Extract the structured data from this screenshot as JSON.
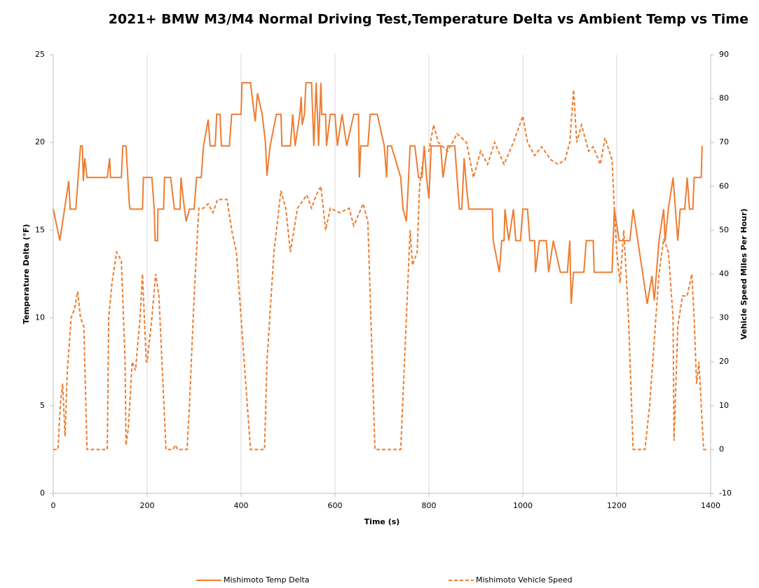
{
  "chart_data": {
    "type": "line",
    "title": "2021+ BMW M3/M4 Normal Driving Test,Temperature Delta vs Ambient Temp vs Time",
    "x_label": "Time (s)",
    "y_label": "Temperature Delta (°F)",
    "y2_label": "Vehicle Speed Miles Per Hour)",
    "xlim": [
      0,
      1400
    ],
    "xticks": [
      0,
      200,
      400,
      600,
      800,
      1000,
      1200,
      1400
    ],
    "ylim": [
      0,
      25
    ],
    "yticks": [
      0,
      5,
      10,
      15,
      20,
      25
    ],
    "y2lim": [
      -10,
      90
    ],
    "y2ticks": [
      -10,
      0,
      10,
      20,
      30,
      40,
      50,
      60,
      70,
      80,
      90
    ],
    "grid": "x",
    "legend": "bottom",
    "series": [
      {
        "name": "Mishimoto Temp Delta",
        "color": "#ed7d31",
        "dash": false,
        "x": [
          0,
          14,
          33,
          36,
          48,
          58,
          62,
          64,
          67,
          72,
          115,
          120,
          122,
          145,
          148,
          155,
          162,
          164,
          190,
          192,
          210,
          215,
          217,
          222,
          223,
          235,
          237,
          250,
          258,
          270,
          272,
          278,
          283,
          290,
          300,
          305,
          315,
          320,
          330,
          334,
          345,
          348,
          355,
          358,
          375,
          380,
          400,
          402,
          420,
          430,
          435,
          445,
          452,
          455,
          462,
          475,
          485,
          487,
          505,
          510,
          515,
          525,
          528,
          530,
          535,
          538,
          550,
          555,
          560,
          565,
          570,
          572,
          580,
          582,
          590,
          600,
          605,
          615,
          625,
          640,
          650,
          652,
          655,
          670,
          675,
          690,
          705,
          710,
          712,
          720,
          740,
          745,
          752,
          755,
          760,
          770,
          778,
          785,
          790,
          795,
          800,
          805,
          825,
          830,
          840,
          855,
          860,
          865,
          870,
          875,
          880,
          885,
          900,
          935,
          937,
          950,
          955,
          960,
          962,
          970,
          980,
          985,
          995,
          1000,
          1010,
          1015,
          1025,
          1027,
          1035,
          1050,
          1055,
          1065,
          1080,
          1095,
          1100,
          1103,
          1108,
          1130,
          1135,
          1150,
          1152,
          1190,
          1195,
          1205,
          1228,
          1235,
          1265,
          1275,
          1280,
          1290,
          1300,
          1303,
          1310,
          1320,
          1330,
          1335,
          1345,
          1350,
          1355,
          1362,
          1365,
          1380,
          1382
        ],
        "values": [
          16.2,
          14.4,
          17.8,
          16.2,
          16.2,
          19.8,
          19.8,
          17.8,
          19.1,
          18.0,
          18.0,
          19.1,
          18.0,
          18.0,
          19.8,
          19.8,
          16.5,
          16.2,
          16.2,
          18.0,
          18.0,
          16.2,
          14.4,
          14.4,
          16.2,
          16.2,
          18.0,
          18.0,
          16.2,
          16.2,
          18.0,
          16.5,
          15.5,
          16.2,
          16.2,
          18.0,
          18.0,
          19.8,
          21.3,
          19.8,
          19.8,
          21.6,
          21.6,
          19.8,
          19.8,
          21.6,
          21.6,
          23.4,
          23.4,
          21.2,
          22.8,
          21.6,
          20.0,
          18.1,
          19.8,
          21.6,
          21.6,
          19.8,
          19.8,
          21.6,
          19.8,
          21.6,
          22.6,
          21.0,
          21.6,
          23.4,
          23.4,
          19.8,
          23.4,
          19.8,
          23.4,
          21.6,
          21.6,
          19.8,
          21.6,
          21.6,
          19.8,
          21.6,
          19.8,
          21.6,
          21.6,
          18.0,
          19.8,
          19.8,
          21.6,
          21.6,
          19.8,
          18.0,
          19.8,
          19.8,
          18.0,
          16.2,
          15.5,
          17.0,
          19.8,
          19.8,
          18.0,
          18.0,
          19.8,
          18.0,
          16.8,
          19.8,
          19.8,
          18.0,
          19.8,
          19.8,
          18.0,
          16.2,
          16.2,
          19.1,
          17.5,
          16.2,
          16.2,
          16.2,
          14.4,
          12.6,
          14.4,
          14.4,
          16.2,
          14.4,
          16.2,
          14.4,
          14.4,
          16.2,
          16.2,
          14.4,
          14.4,
          12.6,
          14.4,
          14.4,
          12.6,
          14.4,
          12.6,
          12.6,
          14.4,
          10.8,
          12.6,
          12.6,
          14.4,
          14.4,
          12.6,
          12.6,
          16.2,
          14.4,
          14.4,
          16.2,
          10.8,
          12.4,
          11.0,
          14.4,
          16.2,
          14.4,
          16.2,
          18.0,
          14.4,
          16.2,
          16.2,
          18.0,
          16.2,
          16.2,
          18.0,
          18.0,
          19.8
        ]
      },
      {
        "name": "Mishimoto Vehicle Speed",
        "color": "#ed7d31",
        "dash": true,
        "axis": "y2",
        "x": [
          0,
          10,
          15,
          20,
          25,
          30,
          38,
          45,
          52,
          58,
          65,
          72,
          115,
          118,
          125,
          135,
          145,
          153,
          155,
          160,
          168,
          175,
          185,
          190,
          198,
          200,
          210,
          218,
          225,
          240,
          255,
          260,
          265,
          285,
          290,
          300,
          310,
          320,
          330,
          340,
          350,
          370,
          380,
          390,
          410,
          420,
          450,
          455,
          470,
          485,
          495,
          505,
          520,
          540,
          550,
          560,
          570,
          580,
          590,
          610,
          630,
          640,
          660,
          670,
          685,
          740,
          750,
          760,
          765,
          775,
          780,
          790,
          800,
          810,
          820,
          840,
          860,
          880,
          895,
          910,
          925,
          940,
          960,
          980,
          1000,
          1010,
          1025,
          1040,
          1060,
          1075,
          1090,
          1100,
          1108,
          1115,
          1125,
          1140,
          1150,
          1165,
          1175,
          1190,
          1195,
          1200,
          1207,
          1215,
          1225,
          1235,
          1260,
          1270,
          1280,
          1290,
          1300,
          1310,
          1320,
          1322,
          1330,
          1340,
          1350,
          1360,
          1365,
          1370,
          1375,
          1380,
          1385,
          1393
        ],
        "values": [
          0,
          0,
          10,
          15,
          3,
          18,
          30,
          32,
          36,
          30,
          28,
          0,
          0,
          30,
          38,
          45,
          43,
          20,
          1,
          5,
          20,
          18,
          30,
          40,
          20,
          20,
          30,
          40,
          35,
          0,
          0,
          1,
          0,
          0,
          10,
          35,
          55,
          55,
          56,
          54,
          57,
          57,
          50,
          45,
          15,
          0,
          0,
          20,
          45,
          59,
          55,
          45,
          55,
          58,
          55,
          58,
          60,
          50,
          55,
          54,
          55,
          51,
          56,
          52,
          0,
          0,
          25,
          50,
          42,
          45,
          60,
          68,
          68,
          74,
          70,
          68,
          72,
          70,
          62,
          68,
          65,
          70,
          65,
          70,
          76,
          70,
          67,
          69,
          66,
          65,
          66,
          70,
          82,
          70,
          74,
          68,
          69,
          65,
          71,
          66,
          55,
          45,
          38,
          50,
          30,
          0,
          0,
          10,
          25,
          40,
          48,
          45,
          30,
          2,
          28,
          35,
          35,
          40,
          30,
          15,
          20,
          10,
          0,
          0
        ]
      }
    ]
  }
}
